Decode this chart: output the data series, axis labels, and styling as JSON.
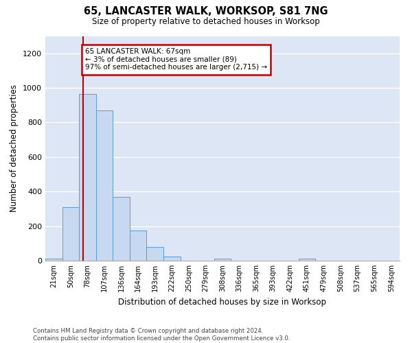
{
  "title": "65, LANCASTER WALK, WORKSOP, S81 7NG",
  "subtitle": "Size of property relative to detached houses in Worksop",
  "xlabel": "Distribution of detached houses by size in Worksop",
  "ylabel": "Number of detached properties",
  "bin_labels": [
    "21sqm",
    "50sqm",
    "78sqm",
    "107sqm",
    "136sqm",
    "164sqm",
    "193sqm",
    "222sqm",
    "250sqm",
    "279sqm",
    "308sqm",
    "336sqm",
    "365sqm",
    "393sqm",
    "422sqm",
    "451sqm",
    "479sqm",
    "508sqm",
    "537sqm",
    "565sqm",
    "594sqm"
  ],
  "bar_values": [
    10,
    310,
    965,
    870,
    370,
    175,
    80,
    22,
    0,
    0,
    10,
    0,
    0,
    0,
    0,
    10,
    0,
    0,
    0,
    0,
    0
  ],
  "bar_color": "#c6d9f1",
  "bar_edge_color": "#5b9bd5",
  "marker_line_color": "#c00000",
  "annotation_text": "65 LANCASTER WALK: 67sqm\n← 3% of detached houses are smaller (89)\n97% of semi-detached houses are larger (2,715) →",
  "annotation_box_color": "#ffffff",
  "annotation_box_edge": "#c00000",
  "ylim": [
    0,
    1300
  ],
  "yticks": [
    0,
    200,
    400,
    600,
    800,
    1000,
    1200
  ],
  "footer": "Contains HM Land Registry data © Crown copyright and database right 2024.\nContains public sector information licensed under the Open Government Licence v3.0.",
  "background_color": "#dce6f5"
}
